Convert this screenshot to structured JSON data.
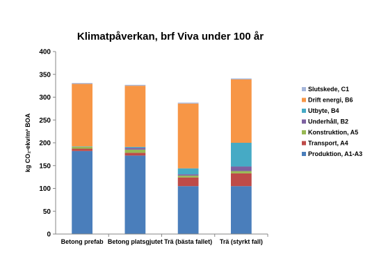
{
  "chart_data": {
    "type": "bar",
    "stacked": true,
    "title": "Klimatpåverkan, brf Viva under 100 år",
    "ylabel": "kg CO₂-ekv/m² BOA",
    "ylim": [
      0,
      400
    ],
    "yticks": [
      0,
      50,
      100,
      150,
      200,
      250,
      300,
      350,
      400
    ],
    "grid": false,
    "legend_position": "right",
    "categories": [
      "Betong prefab",
      "Betong platsgjutet",
      "Trä (bästa fallet)",
      "Trä (styrkt fall)"
    ],
    "series": [
      {
        "name": "Produktion, A1-A3",
        "color": "#4A7EBB",
        "values": [
          182,
          172,
          105,
          105
        ]
      },
      {
        "name": "Transport, A4",
        "color": "#BE4B48",
        "values": [
          5,
          6,
          19,
          28
        ]
      },
      {
        "name": "Konstruktion, A5",
        "color": "#98B954",
        "values": [
          4,
          7,
          4,
          5
        ]
      },
      {
        "name": "Underhåll, B2",
        "color": "#7D60A0",
        "values": [
          0,
          4,
          3,
          10
        ]
      },
      {
        "name": "Utbyte, B4",
        "color": "#46AAC5",
        "values": [
          1,
          2,
          13,
          52
        ]
      },
      {
        "name": "Drift energi, B6",
        "color": "#F79646",
        "values": [
          137,
          134,
          142,
          139
        ]
      },
      {
        "name": "Slutskede, C1",
        "color": "#A5B6DA",
        "values": [
          2,
          2,
          2,
          2
        ]
      }
    ]
  }
}
